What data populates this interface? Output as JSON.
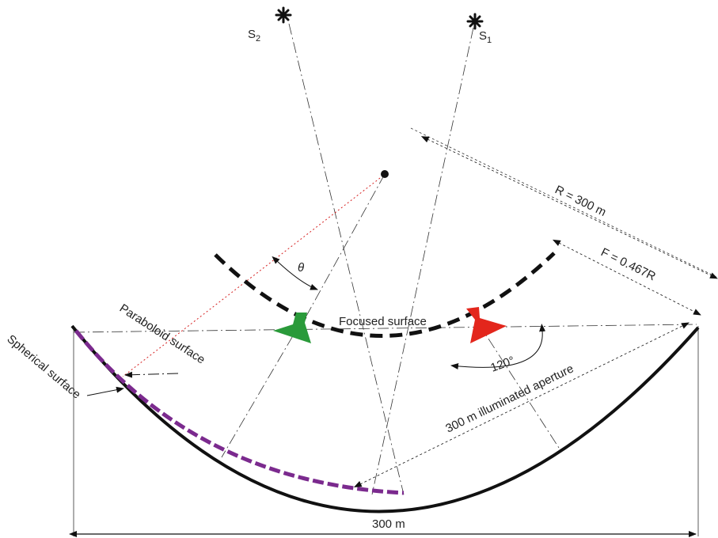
{
  "labels": {
    "source_2": "S",
    "source_2_sub": "2",
    "source_1": "S",
    "source_1_sub": "1",
    "radius": "R = 300 m",
    "focal": "F = 0.467R",
    "theta": "θ",
    "focused_surface": "Focused surface",
    "paraboloid_surface": "Paraboloid surface",
    "spherical_surface": "Spherical surface",
    "angle_120": "120°",
    "illuminated_aperture": "300 m illuminated aperture",
    "span_300m": "300 m"
  },
  "colors": {
    "line": "#111111",
    "paraboloid": "#7b2a8e",
    "feed_left": "#2a9a3a",
    "feed_right": "#e3261c",
    "ray": "#d62020"
  },
  "icons": {
    "source_star": "asterisk-star-icon",
    "feed_left": "green-feed-icon",
    "feed_right": "red-feed-icon",
    "arrowhead": "arrowhead-icon"
  }
}
